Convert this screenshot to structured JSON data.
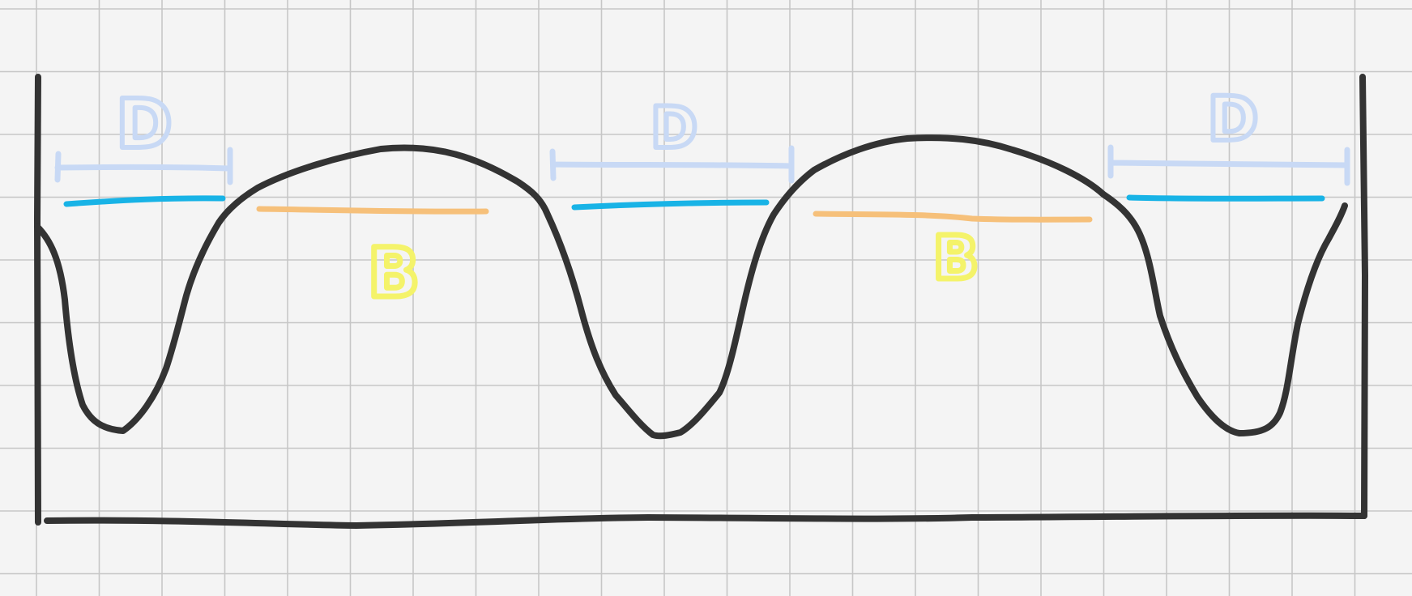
{
  "labels": {
    "d_left": "D",
    "d_middle": "D",
    "d_right": "D",
    "b_left": "B",
    "b_right": "B"
  },
  "colors": {
    "paper": "#f4f4f4",
    "grid": "#c6c6c6",
    "ink": "#333333",
    "d_bracket": "#c8d9f5",
    "d_line": "#18b3e6",
    "b_line": "#f6c07a",
    "b_text": "#f4f36a"
  },
  "icons": {
    "waveform": "hand-drawn-periodic-wave",
    "frame": "box-frame"
  }
}
